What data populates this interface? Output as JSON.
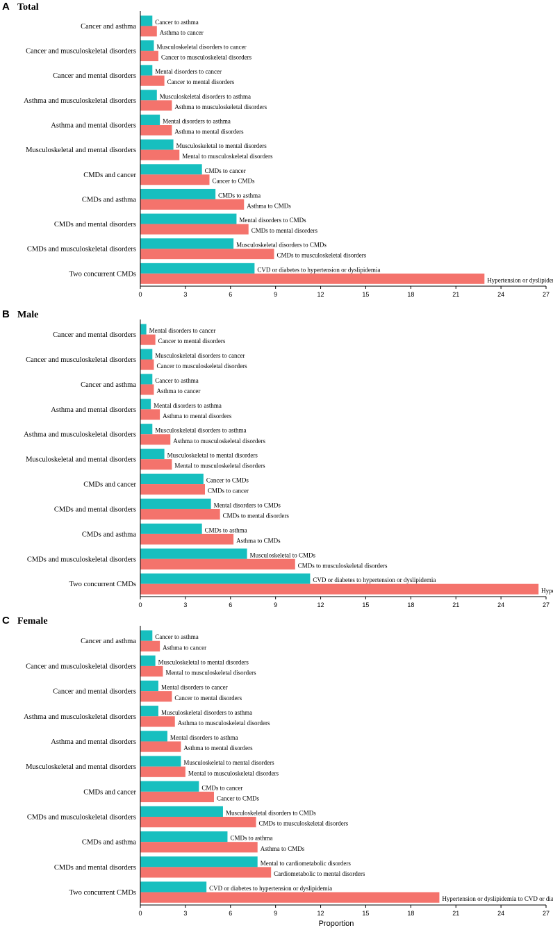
{
  "colors": {
    "first": "#17BFBF",
    "second": "#F4736C",
    "axis": "#000000"
  },
  "chart_data": [
    {
      "type": "bar",
      "orientation": "horizontal",
      "letter": "A",
      "title": "Total",
      "xlabel": "",
      "xlim": [
        0,
        27
      ],
      "xticks": [
        "0",
        "3",
        "6",
        "9",
        "12",
        "15",
        "18",
        "21",
        "24",
        "27"
      ],
      "categories": [
        {
          "label": "Cancer and asthma",
          "first": {
            "value": 0.8,
            "label": "Cancer to asthma"
          },
          "second": {
            "value": 1.1,
            "label": "Asthma to cancer"
          }
        },
        {
          "label": "Cancer and musculoskeletal disorders",
          "first": {
            "value": 0.9,
            "label": "Musculoskeletal disorders to cancer"
          },
          "second": {
            "value": 1.2,
            "label": "Cancer to musculoskeletal disorders"
          }
        },
        {
          "label": "Cancer and mental disorders",
          "first": {
            "value": 0.8,
            "label": "Mental disorders to cancer"
          },
          "second": {
            "value": 1.6,
            "label": "Cancer to mental disorders"
          }
        },
        {
          "label": "Asthma and musculoskeletal disorders",
          "first": {
            "value": 1.1,
            "label": "Musculoskeletal disorders to asthma"
          },
          "second": {
            "value": 2.1,
            "label": "Asthma to musculoskeletal disorders"
          }
        },
        {
          "label": "Asthma and mental disorders",
          "first": {
            "value": 1.3,
            "label": "Mental disorders to asthma"
          },
          "second": {
            "value": 2.1,
            "label": "Asthma to mental disorders"
          }
        },
        {
          "label": "Musculoskeletal and mental disorders",
          "first": {
            "value": 2.2,
            "label": "Musculoskeletal to mental disorders"
          },
          "second": {
            "value": 2.6,
            "label": "Mental  to musculoskeletal disorders"
          }
        },
        {
          "label": "CMDs and cancer",
          "first": {
            "value": 4.1,
            "label": "CMDs to cancer"
          },
          "second": {
            "value": 4.6,
            "label": "Cancer to CMDs"
          }
        },
        {
          "label": "CMDs and asthma",
          "first": {
            "value": 5.0,
            "label": "CMDs to asthma"
          },
          "second": {
            "value": 6.9,
            "label": "Asthma to CMDs"
          }
        },
        {
          "label": "CMDs and mental disorders",
          "first": {
            "value": 6.4,
            "label": "Mental disorders to CMDs"
          },
          "second": {
            "value": 7.2,
            "label": "CMDs to mental disorders"
          }
        },
        {
          "label": "CMDs and musculoskeletal disorders",
          "first": {
            "value": 6.2,
            "label": "Musculoskeletal disorders to CMDs"
          },
          "second": {
            "value": 8.9,
            "label": "CMDs to musculoskeletal disorders"
          }
        },
        {
          "label": "Two concurrent CMDs",
          "first": {
            "value": 7.6,
            "label": "CVD or diabetes to hypertension or dyslipidemia"
          },
          "second": {
            "value": 22.9,
            "label": "Hypertension or dyslipidemia to CVD or diabetes"
          }
        }
      ]
    },
    {
      "type": "bar",
      "orientation": "horizontal",
      "letter": "B",
      "title": "Male",
      "xlabel": "",
      "xlim": [
        0,
        27
      ],
      "xticks": [
        "0",
        "3",
        "6",
        "9",
        "12",
        "15",
        "18",
        "21",
        "24",
        "27"
      ],
      "categories": [
        {
          "label": "Cancer and mental disorders",
          "first": {
            "value": 0.4,
            "label": "Mental disorders to cancer"
          },
          "second": {
            "value": 1.0,
            "label": "Cancer to mental disorders"
          }
        },
        {
          "label": "Cancer and musculoskeletal disorders",
          "first": {
            "value": 0.8,
            "label": "Musculoskeletal disorders to cancer"
          },
          "second": {
            "value": 0.9,
            "label": "Cancer to musculoskeletal disorders"
          }
        },
        {
          "label": "Cancer and asthma",
          "first": {
            "value": 0.8,
            "label": "Cancer to asthma"
          },
          "second": {
            "value": 0.9,
            "label": "Asthma to cancer"
          }
        },
        {
          "label": "Asthma and mental disorders",
          "first": {
            "value": 0.7,
            "label": "Mental disorders to asthma"
          },
          "second": {
            "value": 1.3,
            "label": "Asthma to mental disorders"
          }
        },
        {
          "label": "Asthma and musculoskeletal disorders",
          "first": {
            "value": 0.8,
            "label": "Musculoskeletal disorders to asthma"
          },
          "second": {
            "value": 2.0,
            "label": "Asthma to musculoskeletal disorders"
          }
        },
        {
          "label": "Musculoskeletal and mental disorders",
          "first": {
            "value": 1.6,
            "label": "Musculoskeletal to mental disorders"
          },
          "second": {
            "value": 2.1,
            "label": "Mental  to musculoskeletal disorders"
          }
        },
        {
          "label": "CMDs and cancer",
          "first": {
            "value": 4.2,
            "label": "Cancer to CMDs"
          },
          "second": {
            "value": 4.3,
            "label": "CMDs to cancer"
          }
        },
        {
          "label": "CMDs and mental disorders",
          "first": {
            "value": 4.7,
            "label": "Mental disorders to CMDs"
          },
          "second": {
            "value": 5.3,
            "label": "CMDs to mental disorders"
          }
        },
        {
          "label": "CMDs and asthma",
          "first": {
            "value": 4.1,
            "label": "CMDs to asthma"
          },
          "second": {
            "value": 6.2,
            "label": "Asthma to CMDs"
          }
        },
        {
          "label": "CMDs and musculoskeletal disorders",
          "first": {
            "value": 7.1,
            "label": "Musculoskeletal to CMDs"
          },
          "second": {
            "value": 10.3,
            "label": "CMDs to musculoskeletal disorders"
          }
        },
        {
          "label": "Two concurrent CMDs",
          "first": {
            "value": 11.3,
            "label": "CVD or diabetes to hypertension or dyslipidemia"
          },
          "second": {
            "value": 26.5,
            "label": "Hypertension or dyslipidemia to CVD or diabetes"
          }
        }
      ]
    },
    {
      "type": "bar",
      "orientation": "horizontal",
      "letter": "C",
      "title": "Female",
      "xlabel": "Proportion",
      "xlim": [
        0,
        27
      ],
      "xticks": [
        "0",
        "3",
        "6",
        "9",
        "12",
        "15",
        "18",
        "21",
        "24",
        "27"
      ],
      "categories": [
        {
          "label": "Cancer and asthma",
          "first": {
            "value": 0.8,
            "label": "Cancer to asthma"
          },
          "second": {
            "value": 1.3,
            "label": "Asthma to cancer"
          }
        },
        {
          "label": "Cancer and musculoskeletal disorders",
          "first": {
            "value": 1.0,
            "label": "Musculoskeletal to mental disorders"
          },
          "second": {
            "value": 1.5,
            "label": "Mental  to musculoskeletal disorders"
          }
        },
        {
          "label": "Cancer and mental disorders",
          "first": {
            "value": 1.2,
            "label": "Mental disorders to cancer"
          },
          "second": {
            "value": 2.1,
            "label": "Cancer to mental disorders"
          }
        },
        {
          "label": "Asthma and musculoskeletal disorders",
          "first": {
            "value": 1.2,
            "label": "Musculoskeletal disorders to asthma"
          },
          "second": {
            "value": 2.3,
            "label": "Asthma to musculoskeletal disorders"
          }
        },
        {
          "label": "Asthma and mental disorders",
          "first": {
            "value": 1.8,
            "label": "Mental disorders to asthma"
          },
          "second": {
            "value": 2.7,
            "label": "Asthma to mental disorders"
          }
        },
        {
          "label": "Musculoskeletal and mental disorders",
          "first": {
            "value": 2.7,
            "label": "Musculoskeletal to mental disorders"
          },
          "second": {
            "value": 3.0,
            "label": "Mental  to musculoskeletal disorders"
          }
        },
        {
          "label": "CMDs and cancer",
          "first": {
            "value": 3.9,
            "label": "CMDs to cancer"
          },
          "second": {
            "value": 4.9,
            "label": "Cancer to CMDs"
          }
        },
        {
          "label": "CMDs and musculoskeletal disorders",
          "first": {
            "value": 5.5,
            "label": "Musculoskeletal disorders to CMDs"
          },
          "second": {
            "value": 7.7,
            "label": "CMDs to musculoskeletal disorders"
          }
        },
        {
          "label": "CMDs and asthma",
          "first": {
            "value": 5.8,
            "label": "CMDs to asthma"
          },
          "second": {
            "value": 7.8,
            "label": "Asthma to CMDs"
          }
        },
        {
          "label": "CMDs and mental disorders",
          "first": {
            "value": 7.8,
            "label": "Mental  to cardiometabolic disorders"
          },
          "second": {
            "value": 8.7,
            "label": "Cardiometabolic to mental disorders"
          }
        },
        {
          "label": "Two concurrent CMDs",
          "first": {
            "value": 4.4,
            "label": "CVD or diabetes to hypertension or dyslipidemia"
          },
          "second": {
            "value": 19.9,
            "label": "Hypertension or dyslipidemia to CVD or diabetes"
          }
        }
      ]
    }
  ]
}
